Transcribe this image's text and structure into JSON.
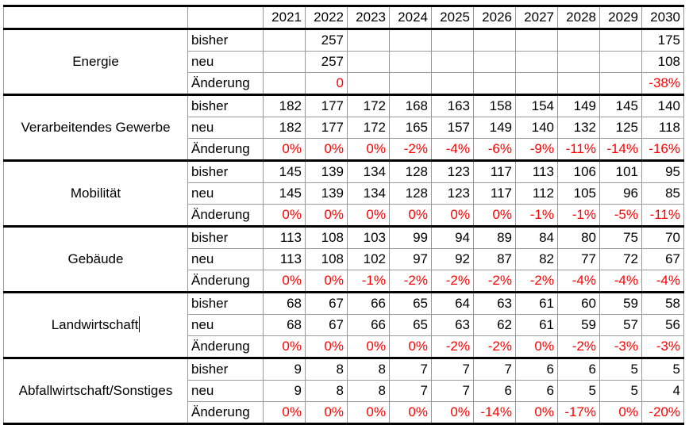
{
  "table": {
    "years": [
      "2021",
      "2022",
      "2023",
      "2024",
      "2025",
      "2026",
      "2027",
      "2028",
      "2029",
      "2030"
    ],
    "groups": [
      {
        "name": "Energie",
        "rows": [
          {
            "label": "bisher",
            "values": [
              "",
              "257",
              "",
              "",
              "",
              "",
              "",
              "",
              "",
              "175"
            ],
            "red": false
          },
          {
            "label": "neu",
            "values": [
              "",
              "257",
              "",
              "",
              "",
              "",
              "",
              "",
              "",
              "108"
            ],
            "red": false
          },
          {
            "label": "Änderung",
            "values": [
              "",
              "0",
              "",
              "",
              "",
              "",
              "",
              "",
              "",
              "-38%"
            ],
            "red": true
          }
        ]
      },
      {
        "name": "Verarbeitendes Gewerbe",
        "rows": [
          {
            "label": "bisher",
            "values": [
              "182",
              "177",
              "172",
              "168",
              "163",
              "158",
              "154",
              "149",
              "145",
              "140"
            ],
            "red": false
          },
          {
            "label": "neu",
            "values": [
              "182",
              "177",
              "172",
              "165",
              "157",
              "149",
              "140",
              "132",
              "125",
              "118"
            ],
            "red": false
          },
          {
            "label": "Änderung",
            "values": [
              "0%",
              "0%",
              "0%",
              "-2%",
              "-4%",
              "-6%",
              "-9%",
              "-11%",
              "-14%",
              "-16%"
            ],
            "red": true
          }
        ]
      },
      {
        "name": "Mobilität",
        "rows": [
          {
            "label": "bisher",
            "values": [
              "145",
              "139",
              "134",
              "128",
              "123",
              "117",
              "113",
              "106",
              "101",
              "95"
            ],
            "red": false
          },
          {
            "label": "neu",
            "values": [
              "145",
              "139",
              "134",
              "128",
              "123",
              "117",
              "112",
              "105",
              "96",
              "85"
            ],
            "red": false
          },
          {
            "label": "Änderung",
            "values": [
              "0%",
              "0%",
              "0%",
              "0%",
              "0%",
              "0%",
              "-1%",
              "-1%",
              "-5%",
              "-11%"
            ],
            "red": true
          }
        ]
      },
      {
        "name": "Gebäude",
        "rows": [
          {
            "label": "bisher",
            "values": [
              "113",
              "108",
              "103",
              "99",
              "94",
              "89",
              "84",
              "80",
              "75",
              "70"
            ],
            "red": false
          },
          {
            "label": "neu",
            "values": [
              "113",
              "108",
              "102",
              "97",
              "92",
              "87",
              "82",
              "77",
              "72",
              "67"
            ],
            "red": false
          },
          {
            "label": "Änderung",
            "values": [
              "0%",
              "0%",
              "-1%",
              "-2%",
              "-2%",
              "-2%",
              "-2%",
              "-4%",
              "-4%",
              "-4%"
            ],
            "red": true
          }
        ]
      },
      {
        "name": "Landwirtschaft",
        "rows": [
          {
            "label": "bisher",
            "values": [
              "68",
              "67",
              "66",
              "65",
              "64",
              "63",
              "61",
              "60",
              "59",
              "58"
            ],
            "red": false
          },
          {
            "label": "neu",
            "values": [
              "68",
              "67",
              "66",
              "65",
              "63",
              "62",
              "61",
              "59",
              "57",
              "56"
            ],
            "red": false
          },
          {
            "label": "Änderung",
            "values": [
              "0%",
              "0%",
              "0%",
              "0%",
              "-2%",
              "-2%",
              "0%",
              "-2%",
              "-3%",
              "-3%"
            ],
            "red": true
          }
        ]
      },
      {
        "name": "Abfallwirtschaft/Sonstiges",
        "rows": [
          {
            "label": "bisher",
            "values": [
              "9",
              "8",
              "8",
              "7",
              "7",
              "7",
              "6",
              "6",
              "5",
              "5"
            ],
            "red": false
          },
          {
            "label": "neu",
            "values": [
              "9",
              "8",
              "8",
              "7",
              "7",
              "6",
              "6",
              "5",
              "5",
              "4"
            ],
            "red": false
          },
          {
            "label": "Änderung",
            "values": [
              "0%",
              "0%",
              "0%",
              "0%",
              "0%",
              "-14%",
              "0%",
              "-17%",
              "0%",
              "-20%"
            ],
            "red": true
          }
        ]
      }
    ]
  },
  "colors": {
    "change_text": "#ff0000",
    "text": "#000000",
    "thick_border": "#000000",
    "thin_border": "#9a9a9a"
  }
}
